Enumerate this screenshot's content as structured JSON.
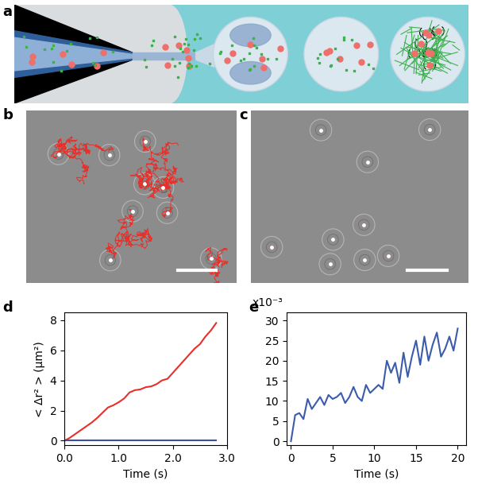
{
  "panel_labels": [
    "a",
    "b",
    "c",
    "d",
    "e"
  ],
  "chart_data": [
    {
      "type": "line",
      "x_label": "Time (s)",
      "y_label": "< Δr² > (μm²)",
      "x": [
        0.0,
        0.1,
        0.2,
        0.3,
        0.4,
        0.5,
        0.6,
        0.7,
        0.8,
        0.9,
        1.0,
        1.1,
        1.2,
        1.3,
        1.4,
        1.5,
        1.6,
        1.7,
        1.8,
        1.9,
        2.0,
        2.1,
        2.2,
        2.3,
        2.4,
        2.5,
        2.6,
        2.7,
        2.8
      ],
      "series": [
        {
          "color": "#e8302a",
          "values": [
            0,
            0.2,
            0.45,
            0.7,
            0.95,
            1.2,
            1.5,
            1.85,
            2.2,
            2.35,
            2.55,
            2.8,
            3.2,
            3.35,
            3.4,
            3.55,
            3.6,
            3.75,
            4.0,
            4.1,
            4.5,
            4.9,
            5.3,
            5.7,
            6.1,
            6.4,
            6.9,
            7.3,
            7.8
          ]
        },
        {
          "color": "#3b4fa8",
          "values": [
            0,
            0,
            0,
            0,
            0,
            0,
            0,
            0,
            0,
            0,
            0,
            0,
            0,
            0,
            0,
            0,
            0,
            0,
            0,
            0,
            0,
            0,
            0,
            0,
            0,
            0,
            0,
            0,
            0
          ]
        }
      ],
      "xlim": [
        0,
        3.0
      ],
      "xticks": [
        {
          "value": 0,
          "label": "0.0"
        },
        {
          "value": 1,
          "label": "1.0"
        },
        {
          "value": 2,
          "label": "2.0"
        },
        {
          "value": 3,
          "label": "3.0"
        }
      ],
      "ylim": [
        -0.3,
        8.5
      ],
      "yticks": [
        0,
        2,
        4,
        6,
        8
      ]
    },
    {
      "type": "line",
      "x_label": "Time (s)",
      "annotations": [
        "x10⁻³"
      ],
      "x": [
        0,
        0.5,
        1,
        1.5,
        2,
        2.5,
        3,
        3.5,
        4,
        4.5,
        5,
        5.5,
        6,
        6.5,
        7,
        7.5,
        8,
        8.5,
        9,
        9.5,
        10,
        10.5,
        11,
        11.5,
        12,
        12.5,
        13,
        13.5,
        14,
        14.5,
        15,
        15.5,
        16,
        16.5,
        17,
        17.5,
        18,
        18.5,
        19,
        19.5,
        20
      ],
      "series": [
        {
          "color": "#3b5bab",
          "values": [
            0,
            6.5,
            7,
            5.5,
            10.5,
            8,
            9.5,
            11,
            9,
            11.5,
            10.5,
            11,
            12,
            9.5,
            11,
            13.5,
            11,
            10,
            14,
            12,
            13,
            14,
            13,
            20,
            17,
            19.5,
            14.5,
            22,
            16,
            21,
            25,
            19,
            26,
            20,
            24,
            27,
            21,
            23,
            26,
            22.5,
            28
          ]
        }
      ],
      "xlim": [
        -0.5,
        21
      ],
      "xticks": [
        0,
        5,
        10,
        15,
        20
      ],
      "ylim": [
        -1,
        32
      ],
      "yticks": [
        0,
        5,
        10,
        15,
        20,
        25,
        30
      ]
    }
  ]
}
